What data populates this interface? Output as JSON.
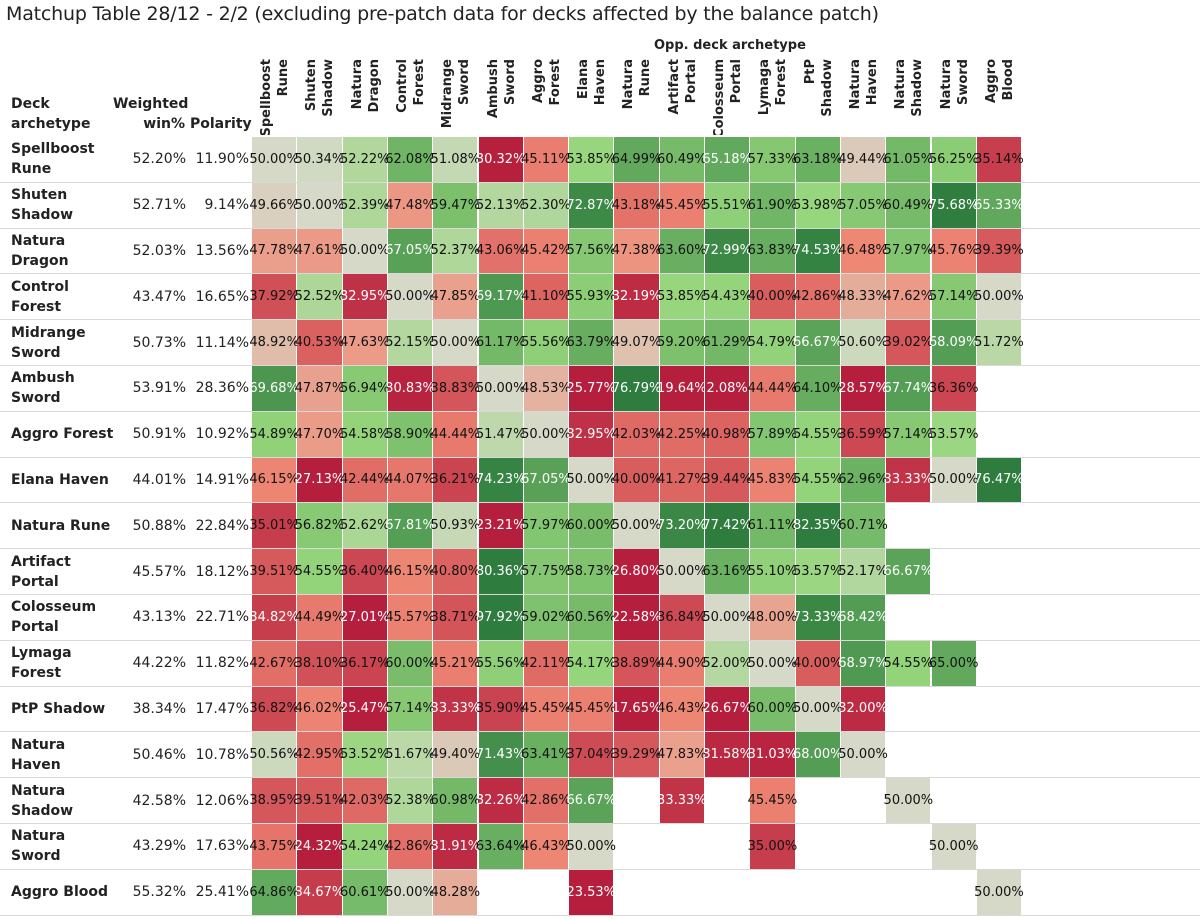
{
  "chart_data": {
    "type": "heatmap",
    "title": "Matchup Table 28/12 - 2/2 (excluding pre-patch data for decks affected by the balance patch)",
    "column_axis_label": "Opp. deck archetype",
    "row_header": [
      "Deck",
      "archetype"
    ],
    "weighted_header": [
      "Weighted",
      "win%"
    ],
    "polarity_header": "Polarity",
    "columns": [
      [
        "Spellboost",
        "Rune"
      ],
      [
        "Shuten",
        "Shadow"
      ],
      [
        "Natura",
        "Dragon"
      ],
      [
        "Control",
        "Forest"
      ],
      [
        "Midrange",
        "Sword"
      ],
      [
        "Ambush",
        "Sword"
      ],
      [
        "Aggro",
        "Forest"
      ],
      [
        "Elana",
        "Haven"
      ],
      [
        "Natura",
        "Rune"
      ],
      [
        "Artifact",
        "Portal"
      ],
      [
        "Colosseum",
        "Portal"
      ],
      [
        "Lymaga",
        "Forest"
      ],
      [
        "PtP",
        "Shadow"
      ],
      [
        "Natura",
        "Haven"
      ],
      [
        "Natura",
        "Shadow"
      ],
      [
        "Natura",
        "Sword"
      ],
      [
        "Aggro",
        "Blood"
      ]
    ],
    "rows": [
      {
        "deck": [
          "Spellboost",
          "Rune"
        ],
        "weighted": "52.20%",
        "polarity": "11.90%",
        "values": [
          50.0,
          50.34,
          52.22,
          62.08,
          51.08,
          30.32,
          45.11,
          53.85,
          64.99,
          60.49,
          65.18,
          57.33,
          63.18,
          49.44,
          61.05,
          56.25,
          35.14
        ]
      },
      {
        "deck": [
          "Shuten",
          "Shadow"
        ],
        "weighted": "52.71%",
        "polarity": "9.14%",
        "values": [
          49.66,
          50.0,
          52.39,
          47.48,
          59.47,
          52.13,
          52.3,
          72.87,
          43.18,
          45.45,
          55.51,
          61.9,
          53.98,
          57.05,
          60.49,
          75.68,
          65.33
        ]
      },
      {
        "deck": [
          "Natura",
          "Dragon"
        ],
        "weighted": "52.03%",
        "polarity": "13.56%",
        "values": [
          47.78,
          47.61,
          50.0,
          67.05,
          52.37,
          43.06,
          45.42,
          57.56,
          47.38,
          63.6,
          72.99,
          63.83,
          74.53,
          46.48,
          57.97,
          45.76,
          39.39
        ]
      },
      {
        "deck": [
          "Control",
          "Forest"
        ],
        "weighted": "43.47%",
        "polarity": "16.65%",
        "values": [
          37.92,
          52.52,
          32.95,
          50.0,
          47.85,
          69.17,
          41.1,
          55.93,
          32.19,
          53.85,
          54.43,
          40.0,
          42.86,
          48.33,
          47.62,
          57.14,
          50.0
        ]
      },
      {
        "deck": [
          "Midrange",
          "Sword"
        ],
        "weighted": "50.73%",
        "polarity": "11.14%",
        "values": [
          48.92,
          40.53,
          47.63,
          52.15,
          50.0,
          61.17,
          55.56,
          63.79,
          49.07,
          59.2,
          61.29,
          54.79,
          66.67,
          50.6,
          39.02,
          68.09,
          51.72
        ]
      },
      {
        "deck": [
          "Ambush",
          "Sword"
        ],
        "weighted": "53.91%",
        "polarity": "28.36%",
        "values": [
          69.68,
          47.87,
          56.94,
          30.83,
          38.83,
          50.0,
          48.53,
          25.77,
          76.79,
          19.64,
          2.08,
          44.44,
          64.1,
          28.57,
          67.74,
          36.36,
          null
        ]
      },
      {
        "deck": [
          "Aggro Forest"
        ],
        "weighted": "50.91%",
        "polarity": "10.92%",
        "values": [
          54.89,
          47.7,
          54.58,
          58.9,
          44.44,
          51.47,
          50.0,
          32.95,
          42.03,
          42.25,
          40.98,
          57.89,
          54.55,
          36.59,
          57.14,
          53.57,
          null
        ]
      },
      {
        "deck": [
          "Elana Haven"
        ],
        "weighted": "44.01%",
        "polarity": "14.91%",
        "values": [
          46.15,
          27.13,
          42.44,
          44.07,
          36.21,
          74.23,
          67.05,
          50.0,
          40.0,
          41.27,
          39.44,
          45.83,
          54.55,
          62.96,
          33.33,
          50.0,
          76.47
        ]
      },
      {
        "deck": [
          "Natura Rune"
        ],
        "weighted": "50.88%",
        "polarity": "22.84%",
        "values": [
          35.01,
          56.82,
          52.62,
          67.81,
          50.93,
          23.21,
          57.97,
          60.0,
          50.0,
          73.2,
          77.42,
          61.11,
          82.35,
          60.71,
          null,
          null,
          null
        ]
      },
      {
        "deck": [
          "Artifact",
          "Portal"
        ],
        "weighted": "45.57%",
        "polarity": "18.12%",
        "values": [
          39.51,
          54.55,
          36.4,
          46.15,
          40.8,
          80.36,
          57.75,
          58.73,
          26.8,
          50.0,
          63.16,
          55.1,
          53.57,
          52.17,
          66.67,
          null,
          null
        ]
      },
      {
        "deck": [
          "Colosseum",
          "Portal"
        ],
        "weighted": "43.13%",
        "polarity": "22.71%",
        "values": [
          34.82,
          44.49,
          27.01,
          45.57,
          38.71,
          97.92,
          59.02,
          60.56,
          22.58,
          36.84,
          50.0,
          48.0,
          73.33,
          68.42,
          null,
          null,
          null
        ]
      },
      {
        "deck": [
          "Lymaga",
          "Forest"
        ],
        "weighted": "44.22%",
        "polarity": "11.82%",
        "values": [
          42.67,
          38.1,
          36.17,
          60.0,
          45.21,
          55.56,
          42.11,
          54.17,
          38.89,
          44.9,
          52.0,
          50.0,
          40.0,
          68.97,
          54.55,
          65.0,
          null
        ]
      },
      {
        "deck": [
          "PtP Shadow"
        ],
        "weighted": "38.34%",
        "polarity": "17.47%",
        "values": [
          36.82,
          46.02,
          25.47,
          57.14,
          33.33,
          35.9,
          45.45,
          45.45,
          17.65,
          46.43,
          26.67,
          60.0,
          50.0,
          32.0,
          null,
          null,
          null
        ]
      },
      {
        "deck": [
          "Natura Haven"
        ],
        "weighted": "50.46%",
        "polarity": "10.78%",
        "values": [
          50.56,
          42.95,
          53.52,
          51.67,
          49.4,
          71.43,
          63.41,
          37.04,
          39.29,
          47.83,
          31.58,
          31.03,
          68.0,
          50.0,
          null,
          null,
          null
        ]
      },
      {
        "deck": [
          "Natura",
          "Shadow"
        ],
        "weighted": "42.58%",
        "polarity": "12.06%",
        "values": [
          38.95,
          39.51,
          42.03,
          52.38,
          60.98,
          32.26,
          42.86,
          66.67,
          null,
          33.33,
          null,
          45.45,
          null,
          null,
          50.0,
          null,
          null
        ]
      },
      {
        "deck": [
          "Natura Sword"
        ],
        "weighted": "43.29%",
        "polarity": "17.63%",
        "values": [
          43.75,
          24.32,
          54.24,
          42.86,
          31.91,
          63.64,
          46.43,
          50.0,
          null,
          null,
          null,
          35.0,
          null,
          null,
          null,
          50.0,
          null
        ]
      },
      {
        "deck": [
          "Aggro Blood"
        ],
        "weighted": "55.32%",
        "polarity": "25.41%",
        "values": [
          64.86,
          34.67,
          60.61,
          50.0,
          48.28,
          null,
          null,
          23.53,
          null,
          null,
          null,
          null,
          null,
          null,
          null,
          null,
          50.0
        ]
      }
    ],
    "color_scale": {
      "low": "#b51e3c",
      "mid": "#d6d9c8",
      "high": "#2e7d3e"
    }
  }
}
